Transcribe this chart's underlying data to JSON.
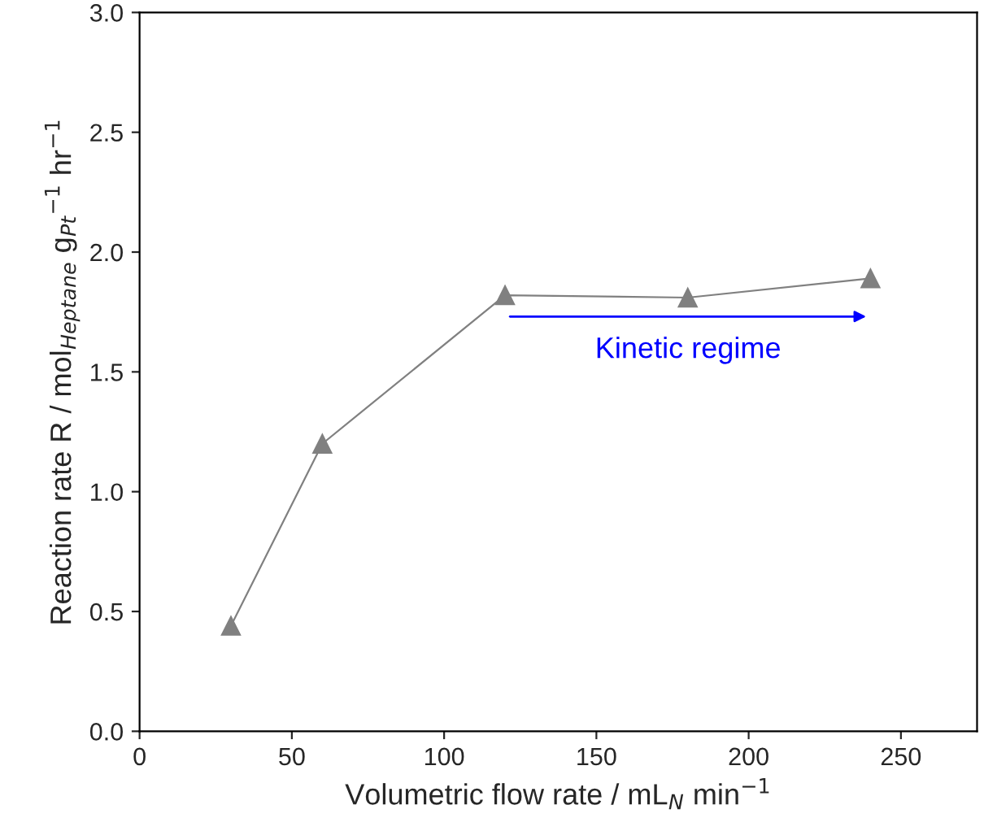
{
  "chart_data": {
    "type": "line",
    "xlabel": "Volumetric flow rate / mL$_{N}$ min$^{−1}$",
    "ylabel": "Reaction rate R / mol$_{Heptane}$ g$_{Pt}$$^{−1}$ hr$^{−1}$",
    "x": [
      30,
      60,
      120,
      180,
      240
    ],
    "series": [
      {
        "color": "#808080",
        "values": [
          0.44,
          1.2,
          1.82,
          1.81,
          1.89
        ]
      }
    ],
    "marker": "triangle",
    "line_style": "solid",
    "grid": false,
    "legend": false,
    "xlim": [
      0,
      275
    ],
    "xticks": [
      0,
      50,
      100,
      150,
      200,
      250
    ],
    "ylim": [
      0,
      3
    ],
    "yticks": [
      {
        "value": 0,
        "label": "0.0"
      },
      {
        "value": 0.5,
        "label": "0.5"
      },
      {
        "value": 1,
        "label": "1.0"
      },
      {
        "value": 1.5,
        "label": "1.5"
      },
      {
        "value": 2,
        "label": "2.0"
      },
      {
        "value": 2.5,
        "label": "2.5"
      },
      {
        "value": 3,
        "label": "3.0"
      }
    ],
    "annotations": [
      "Kinetic regime"
    ]
  }
}
